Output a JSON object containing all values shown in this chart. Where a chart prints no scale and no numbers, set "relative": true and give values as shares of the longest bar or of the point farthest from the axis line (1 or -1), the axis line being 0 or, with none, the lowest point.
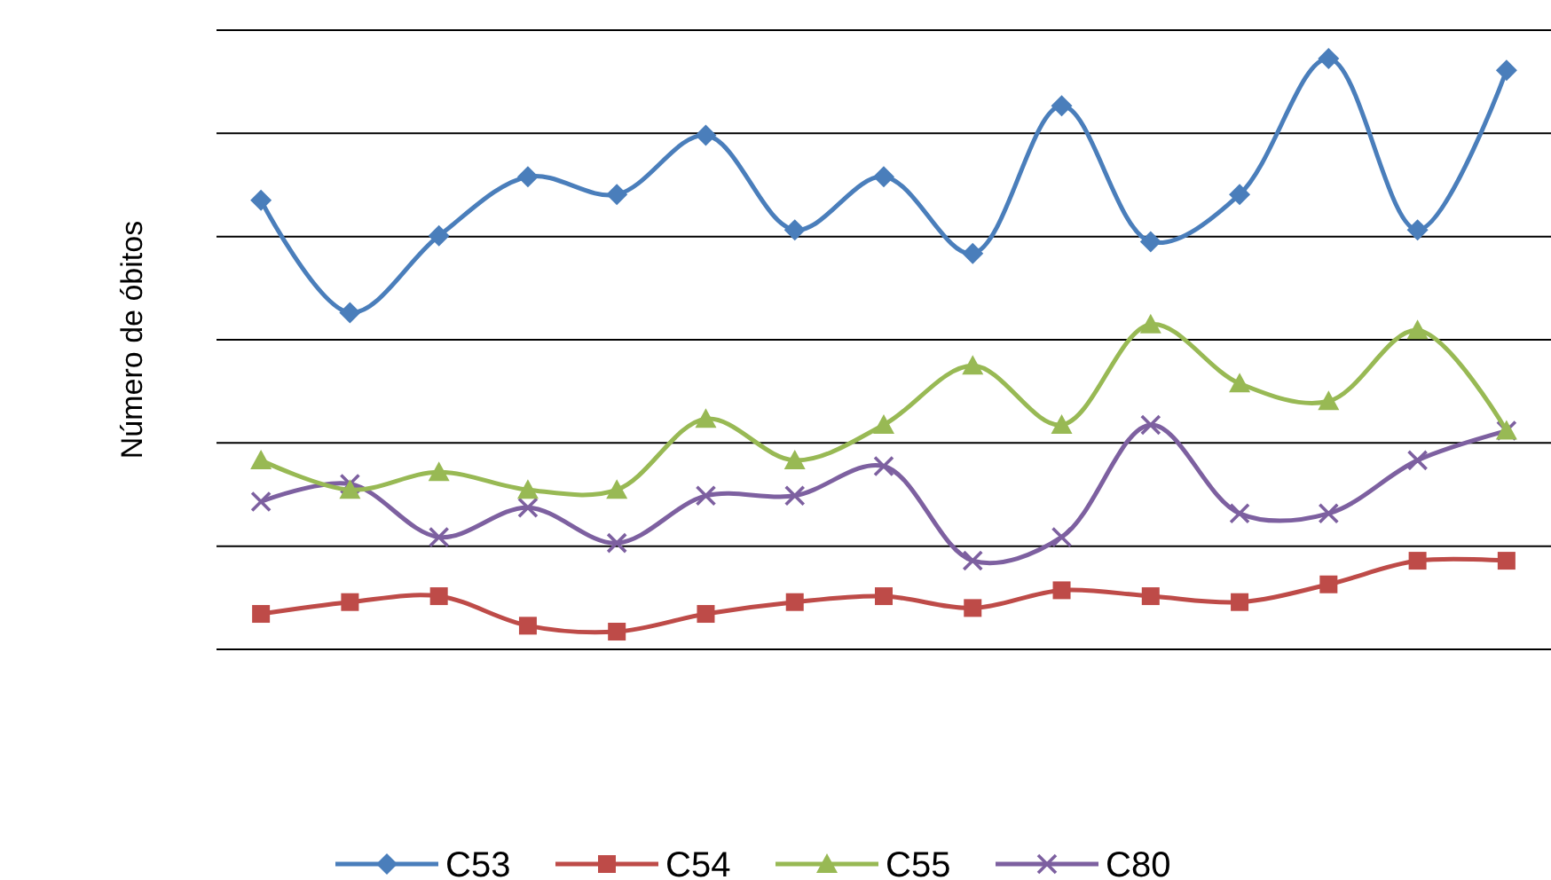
{
  "chart_data": {
    "type": "line",
    "ylabel": "Número de óbitos",
    "relative": true,
    "grid": true,
    "legend": "bottom",
    "categories": [
      null,
      null,
      null,
      null,
      null,
      null,
      null,
      null,
      null,
      null,
      null,
      null,
      null,
      null,
      null
    ],
    "series": [
      {
        "name": "C53",
        "color": "#4a7ebb",
        "marker": "diamond",
        "values": [
          0.76,
          0.57,
          0.7,
          0.8,
          0.77,
          0.87,
          0.71,
          0.8,
          0.67,
          0.92,
          0.69,
          0.77,
          1.0,
          0.71,
          0.98
        ]
      },
      {
        "name": "C54",
        "color": "#be4b48",
        "marker": "square",
        "values": [
          0.06,
          0.08,
          0.09,
          0.04,
          0.03,
          0.06,
          0.08,
          0.09,
          0.07,
          0.1,
          0.09,
          0.08,
          0.11,
          0.15,
          0.15
        ]
      },
      {
        "name": "C55",
        "color": "#98b954",
        "marker": "triangle",
        "values": [
          0.32,
          0.27,
          0.3,
          0.27,
          0.27,
          0.39,
          0.32,
          0.38,
          0.48,
          0.38,
          0.55,
          0.45,
          0.42,
          0.54,
          0.37
        ]
      },
      {
        "name": "C80",
        "color": "#7d60a0",
        "marker": "cross",
        "values": [
          0.25,
          0.28,
          0.19,
          0.24,
          0.18,
          0.26,
          0.26,
          0.31,
          0.15,
          0.19,
          0.38,
          0.23,
          0.23,
          0.32,
          0.37
        ]
      }
    ]
  }
}
